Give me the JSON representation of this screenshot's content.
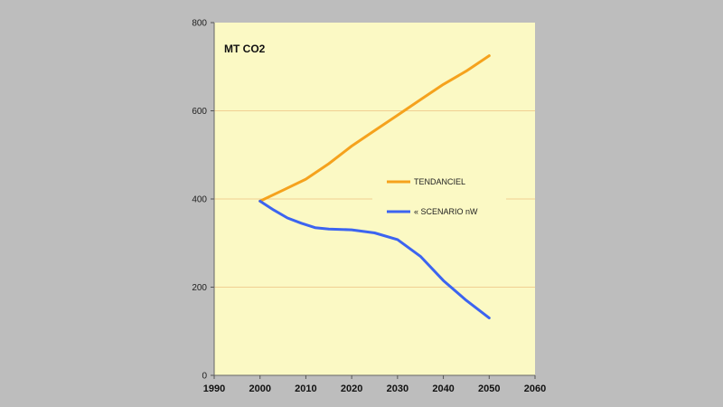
{
  "chart_data": {
    "type": "line",
    "unit_label": "MT  CO2",
    "xlim": [
      1990,
      2060
    ],
    "ylim": [
      0,
      800
    ],
    "x_ticks": [
      1990,
      2000,
      2010,
      2020,
      2030,
      2040,
      2050,
      2060
    ],
    "y_ticks": [
      0,
      200,
      400,
      600,
      800
    ],
    "grid": "horizontal",
    "legend_position": "center-right",
    "series": [
      {
        "name": "TENDANCIEL",
        "color": "#f5a21d",
        "x": [
          2000,
          2005,
          2010,
          2015,
          2020,
          2025,
          2030,
          2035,
          2040,
          2045,
          2050
        ],
        "y": [
          395,
          420,
          445,
          480,
          520,
          555,
          590,
          625,
          660,
          690,
          725
        ]
      },
      {
        "name": "« SCENARIO nW",
        "color": "#3c64f0",
        "x": [
          2000,
          2003,
          2006,
          2009,
          2012,
          2015,
          2020,
          2025,
          2030,
          2035,
          2040,
          2045,
          2050
        ],
        "y": [
          395,
          375,
          357,
          345,
          335,
          332,
          330,
          323,
          308,
          270,
          215,
          170,
          130
        ]
      }
    ]
  }
}
